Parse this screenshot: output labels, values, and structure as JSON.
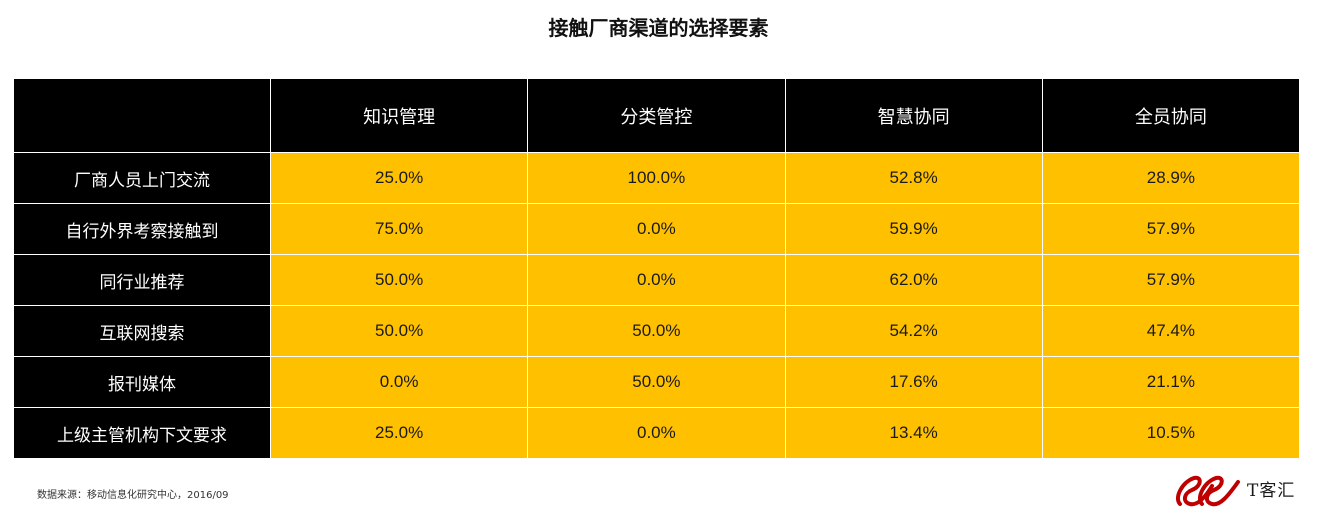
{
  "chart_data": {
    "type": "table",
    "title": "接触厂商渠道的选择要素",
    "columns": [
      "",
      "知识管理",
      "分类管控",
      "智慧协同",
      "全员协同"
    ],
    "rows": [
      {
        "label": "厂商人员上门交流",
        "values": [
          "25.0%",
          "100.0%",
          "52.8%",
          "28.9%"
        ]
      },
      {
        "label": "自行外界考察接触到",
        "values": [
          "75.0%",
          "0.0%",
          "59.9%",
          "57.9%"
        ]
      },
      {
        "label": "同行业推荐",
        "values": [
          "50.0%",
          "0.0%",
          "62.0%",
          "57.9%"
        ]
      },
      {
        "label": "互联网搜索",
        "values": [
          "50.0%",
          "50.0%",
          "54.2%",
          "47.4%"
        ]
      },
      {
        "label": "报刊媒体",
        "values": [
          "0.0%",
          "50.0%",
          "17.6%",
          "21.1%"
        ]
      },
      {
        "label": "上级主管机构下文要求",
        "values": [
          "25.0%",
          "0.0%",
          "13.4%",
          "10.5%"
        ]
      }
    ]
  },
  "source": "数据来源：移动信息化研究中心，2016/09",
  "logo": {
    "text": "T客汇",
    "icon": "ee-logo-icon",
    "color": "#c00000"
  },
  "colors": {
    "header_bg": "#000000",
    "cell_bg": "#ffc000"
  }
}
